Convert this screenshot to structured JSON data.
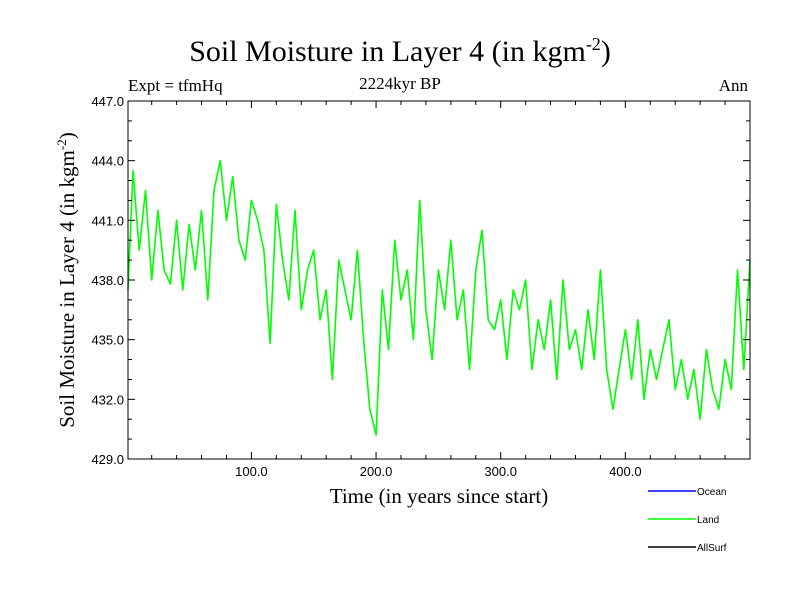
{
  "chart_data": {
    "type": "line",
    "title": "Soil Moisture in Layer 4 (in kgm",
    "title_sup": "-2",
    "title_end": ")",
    "subtitle": "2224kyr BP",
    "left_label": "Expt = tfmHq",
    "right_label": "Ann",
    "xlabel": "Time (in years since start)",
    "ylabel": "Soil Moisture in Layer 4 (in kgm",
    "ylabel_sup": "-2",
    "ylabel_end": ")",
    "xlim": [
      1,
      500
    ],
    "ylim": [
      429.0,
      447.0
    ],
    "xticks": [
      100,
      200,
      300,
      400
    ],
    "xtick_labels": [
      "100.0",
      "200.0",
      "300.0",
      "400.0"
    ],
    "yticks": [
      429,
      432,
      435,
      438,
      441,
      444,
      447
    ],
    "ytick_labels": [
      "429.0",
      "432.0",
      "435.0",
      "438.0",
      "441.0",
      "444.0",
      "447.0"
    ],
    "legend": {
      "position": "bottom-right",
      "entries": [
        {
          "name": "Ocean",
          "color": "#0000ff"
        },
        {
          "name": "Land",
          "color": "#00ff00"
        },
        {
          "name": "AllSurf",
          "color": "#000000"
        }
      ]
    },
    "series": [
      {
        "name": "Land",
        "color": "#00ff00",
        "x": [
          1,
          5,
          10,
          15,
          20,
          25,
          30,
          35,
          40,
          45,
          50,
          55,
          60,
          65,
          70,
          75,
          80,
          85,
          90,
          95,
          100,
          105,
          110,
          115,
          120,
          125,
          130,
          135,
          140,
          145,
          150,
          155,
          160,
          165,
          170,
          175,
          180,
          185,
          190,
          195,
          200,
          205,
          210,
          215,
          220,
          225,
          230,
          235,
          240,
          245,
          250,
          255,
          260,
          265,
          270,
          275,
          280,
          285,
          290,
          295,
          300,
          305,
          310,
          315,
          320,
          325,
          330,
          335,
          340,
          345,
          350,
          355,
          360,
          365,
          370,
          375,
          380,
          385,
          390,
          395,
          400,
          405,
          410,
          415,
          420,
          425,
          430,
          435,
          440,
          445,
          450,
          455,
          460,
          465,
          470,
          475,
          480,
          485,
          490,
          495,
          500
        ],
        "values": [
          437.5,
          443.5,
          439.5,
          442.5,
          438.0,
          441.5,
          438.5,
          437.8,
          441.0,
          437.5,
          440.8,
          438.5,
          441.5,
          437.0,
          442.5,
          444.0,
          441.0,
          443.2,
          440.0,
          439.0,
          442.0,
          441.0,
          439.5,
          434.8,
          441.8,
          439.0,
          437.0,
          441.5,
          436.5,
          438.5,
          439.5,
          436.0,
          437.5,
          433.0,
          439.0,
          437.5,
          436.0,
          439.5,
          435.0,
          431.5,
          430.2,
          437.5,
          434.5,
          440.0,
          437.0,
          438.5,
          435.0,
          442.0,
          436.5,
          434.0,
          438.5,
          436.5,
          440.0,
          436.0,
          437.5,
          433.5,
          438.5,
          440.5,
          436.0,
          435.5,
          437.0,
          434.0,
          437.5,
          436.5,
          438.0,
          433.5,
          436.0,
          434.5,
          437.0,
          433.0,
          438.0,
          434.5,
          435.5,
          433.5,
          436.5,
          434.0,
          438.5,
          433.5,
          431.5,
          433.5,
          435.5,
          433.0,
          436.0,
          432.0,
          434.5,
          433.0,
          434.5,
          436.0,
          432.5,
          434.0,
          432.0,
          433.5,
          431.0,
          434.5,
          432.5,
          431.5,
          434.0,
          432.5,
          438.5,
          433.5,
          439.0
        ]
      }
    ]
  }
}
